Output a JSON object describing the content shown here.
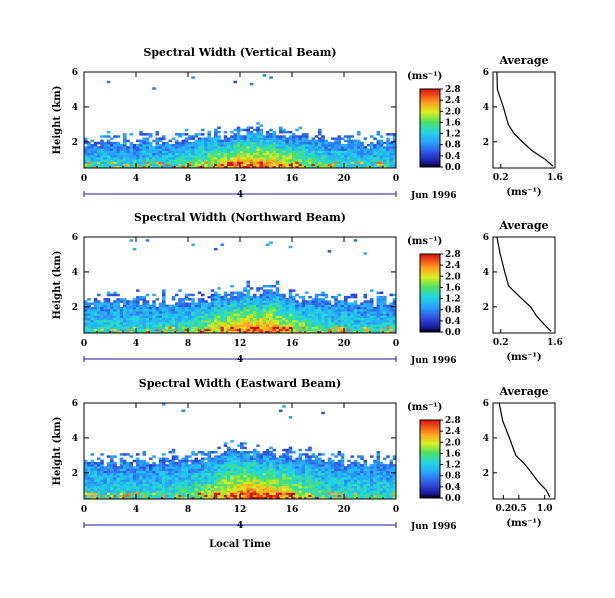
{
  "figure": {
    "xlabel": "Local Time",
    "date_label": "Jun 1996"
  },
  "chart_data": [
    {
      "type": "heatmap",
      "title": "Spectral Width (Vertical Beam)",
      "ylabel": "Height (km)",
      "xlabel": "Local Time",
      "xlim": [
        0,
        24
      ],
      "ylim": [
        0.5,
        6
      ],
      "xticks": [
        "0",
        "4",
        "8",
        "12",
        "16",
        "20",
        "0"
      ],
      "yticks": [
        "2",
        "4",
        "6"
      ],
      "day_marker": "4",
      "colorbar": {
        "unit": "(ms⁻¹)",
        "ticks": [
          "0.0",
          "0.4",
          "0.8",
          "1.2",
          "1.6",
          "2.0",
          "2.4",
          "2.8"
        ]
      },
      "profile": {
        "title": "Average",
        "xlabel": "(ms⁻¹)",
        "xlim": [
          0,
          1.6
        ],
        "xticks": [
          "0.2",
          "1.6"
        ],
        "yticks": [
          "2",
          "4",
          "6"
        ],
        "height_km": [
          6.0,
          5.0,
          4.0,
          3.0,
          2.5,
          2.0,
          1.5,
          1.0,
          0.6
        ],
        "width_ms": [
          0.1,
          0.15,
          0.25,
          0.35,
          0.55,
          0.75,
          1.0,
          1.3,
          1.55
        ]
      }
    },
    {
      "type": "heatmap",
      "title": "Spectral Width (Northward Beam)",
      "ylabel": "Height (km)",
      "xlabel": "Local Time",
      "xlim": [
        0,
        24
      ],
      "ylim": [
        0.5,
        6
      ],
      "xticks": [
        "0",
        "4",
        "8",
        "12",
        "16",
        "20",
        "0"
      ],
      "yticks": [
        "2",
        "4",
        "6"
      ],
      "day_marker": "4",
      "colorbar": {
        "unit": "(ms⁻¹)",
        "ticks": [
          "0.0",
          "0.4",
          "0.8",
          "1.2",
          "1.6",
          "2.0",
          "2.4",
          "2.8"
        ]
      },
      "profile": {
        "title": "Average",
        "xlabel": "(ms⁻¹)",
        "xlim": [
          0,
          1.6
        ],
        "xticks": [
          "0.2",
          "1.6"
        ],
        "yticks": [
          "2",
          "4",
          "6"
        ],
        "height_km": [
          6.0,
          5.0,
          4.0,
          3.2,
          2.5,
          2.0,
          1.5,
          1.0,
          0.6
        ],
        "width_ms": [
          0.1,
          0.15,
          0.3,
          0.45,
          0.75,
          0.95,
          1.15,
          1.35,
          1.5
        ]
      }
    },
    {
      "type": "heatmap",
      "title": "Spectral Width (Eastward Beam)",
      "ylabel": "Height (km)",
      "xlabel": "Local Time",
      "xlim": [
        0,
        24
      ],
      "ylim": [
        0.5,
        6
      ],
      "xticks": [
        "0",
        "4",
        "8",
        "12",
        "16",
        "20",
        "0"
      ],
      "yticks": [
        "2",
        "4",
        "6"
      ],
      "day_marker": "4",
      "colorbar": {
        "unit": "(ms⁻¹)",
        "ticks": [
          "0.0",
          "0.4",
          "0.8",
          "1.2",
          "1.6",
          "2.0",
          "2.4",
          "2.8"
        ]
      },
      "profile": {
        "title": "Average",
        "xlabel": "(ms⁻¹)",
        "xlim": [
          0,
          1.2
        ],
        "xticks": [
          "0.2",
          "0.5",
          "1.0"
        ],
        "yticks": [
          "2",
          "4",
          "6"
        ],
        "height_km": [
          6.0,
          5.0,
          4.0,
          3.0,
          2.5,
          2.0,
          1.5,
          1.0,
          0.6
        ],
        "width_ms": [
          0.12,
          0.2,
          0.3,
          0.45,
          0.6,
          0.75,
          0.9,
          1.05,
          1.1
        ]
      }
    }
  ]
}
